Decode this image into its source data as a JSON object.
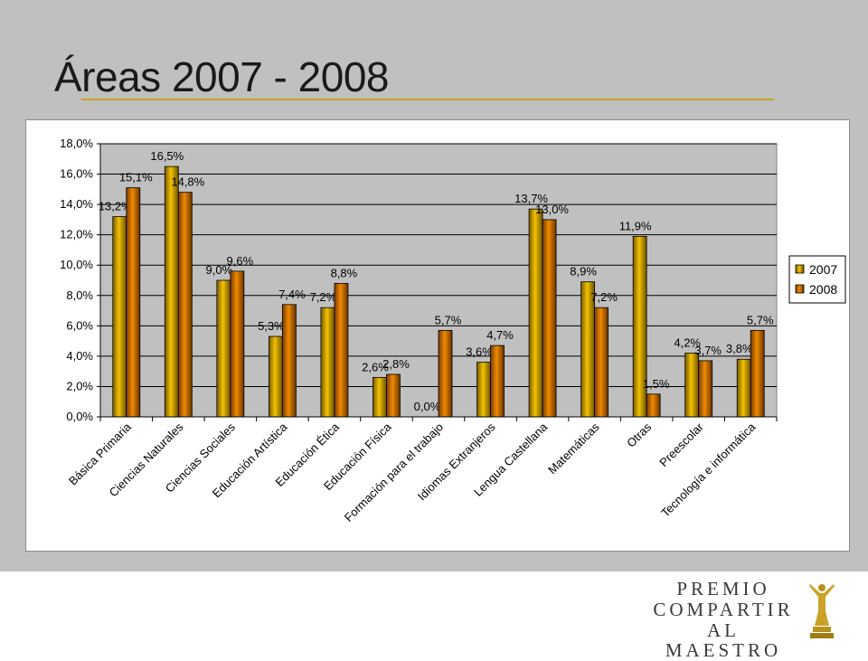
{
  "slide": {
    "title": "Áreas 2007 - 2008"
  },
  "logo": {
    "line1": "PREMIO",
    "line2": "COMPARTIR",
    "line3": "AL MAESTRO",
    "icon": "trophy-figure-icon"
  },
  "colors": {
    "series_2007": "#f2c200",
    "series_2008": "#f08a00",
    "title_rule": "#c9a227",
    "plot_bg": "#c0c0c0"
  },
  "chart_data": {
    "type": "bar",
    "categories": [
      "Básica Primaria",
      "Ciencias Naturales",
      "Ciencias Sociales",
      "Educación Artística",
      "Educación Ética",
      "Educación Física",
      "Formación para el trabajo",
      "Idiomas Extranjeros",
      "Lengua Castellana",
      "Matemáticas",
      "Otras",
      "Preescolar",
      "Tecnología e informática"
    ],
    "series": [
      {
        "name": "2007",
        "values": [
          13.2,
          16.5,
          9.0,
          5.3,
          7.2,
          2.6,
          0.0,
          3.6,
          13.7,
          8.9,
          11.9,
          4.2,
          3.8
        ],
        "labels": [
          "13,2%",
          "16,5%",
          "9,0%",
          "5,3%",
          "7,2%",
          "2,6%",
          "0,0%",
          "3,6%",
          "13,7%",
          "8,9%",
          "11,9%",
          "4,2%",
          "3,8%"
        ]
      },
      {
        "name": "2008",
        "values": [
          15.1,
          14.8,
          9.6,
          7.4,
          8.8,
          2.8,
          5.7,
          4.7,
          13.0,
          7.2,
          1.5,
          3.7,
          5.7
        ],
        "labels": [
          "15,1%",
          "14,8%",
          "9,6%",
          "7,4%",
          "8,8%",
          "2,8%",
          "5,7%",
          "4,7%",
          "13,0%",
          "7,2%",
          "1,5%",
          "3,7%",
          "5,7%"
        ]
      }
    ],
    "ylim": [
      0,
      18
    ],
    "yticks": [
      0,
      2,
      4,
      6,
      8,
      10,
      12,
      14,
      16,
      18
    ],
    "ytick_labels": [
      "0,0%",
      "2,0%",
      "4,0%",
      "6,0%",
      "8,0%",
      "10,0%",
      "12,0%",
      "14,0%",
      "16,0%",
      "18,0%"
    ],
    "legend": [
      "2007",
      "2008"
    ],
    "legend_position": "right",
    "grid": true
  }
}
